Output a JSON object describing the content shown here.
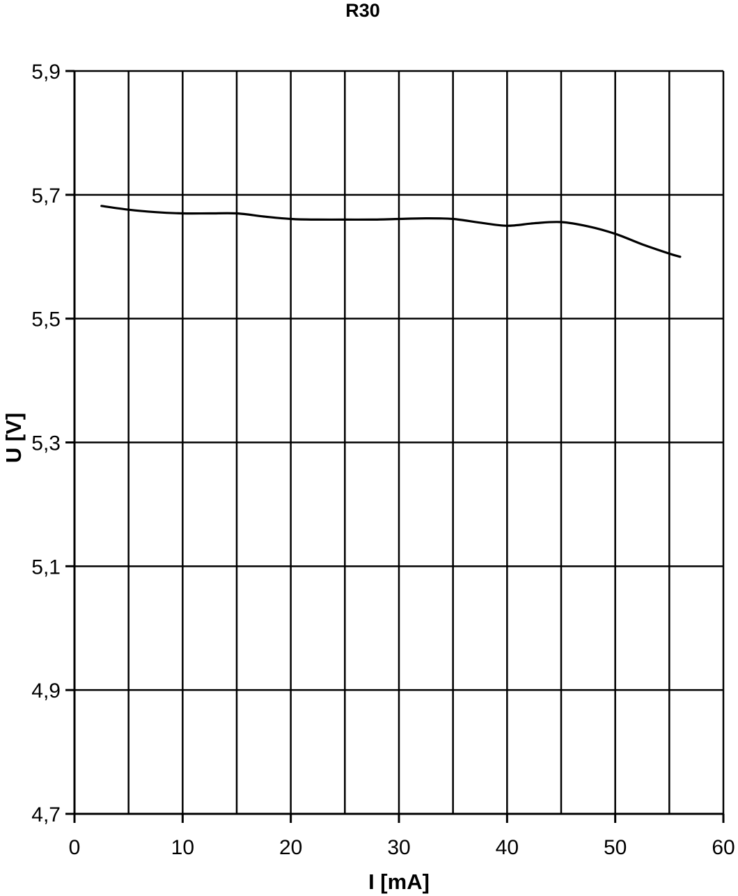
{
  "chart_data": {
    "type": "line",
    "title": "R30",
    "xlabel": "I [mA]",
    "ylabel": "U [V]",
    "xlim": [
      0,
      60
    ],
    "ylim": [
      4.7,
      5.9
    ],
    "x_grid_step": 5,
    "x_tick_step": 10,
    "y_tick_step": 0.2,
    "x_tick_labels": [
      "0",
      "10",
      "20",
      "30",
      "40",
      "50",
      "60"
    ],
    "y_tick_labels": [
      "5,9",
      "5,7",
      "5,5",
      "5,3",
      "5,1",
      "4,9",
      "4,7"
    ],
    "grid": true,
    "legend_position": "none",
    "line_color": "#000000",
    "grid_color": "#000000",
    "background_color": "#ffffff",
    "series": [
      {
        "name": "R30",
        "x": [
          2.5,
          5,
          7.5,
          10,
          12.5,
          15,
          17.5,
          20,
          22.5,
          25,
          27.5,
          30,
          32.5,
          35,
          37.5,
          40,
          42.5,
          45,
          47.5,
          50,
          52.5,
          55,
          56
        ],
        "y": [
          5.682,
          5.676,
          5.672,
          5.67,
          5.67,
          5.67,
          5.665,
          5.661,
          5.66,
          5.66,
          5.66,
          5.661,
          5.662,
          5.661,
          5.655,
          5.65,
          5.654,
          5.656,
          5.649,
          5.637,
          5.62,
          5.605,
          5.6
        ]
      }
    ]
  }
}
